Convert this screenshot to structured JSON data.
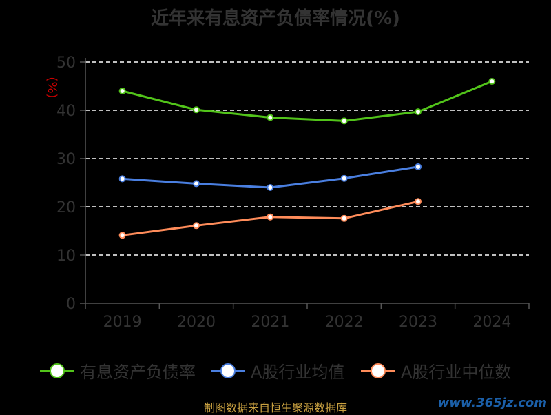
{
  "chart_data": {
    "type": "line",
    "title": "近年来有息资产负债率情况(%)",
    "ylabel": "(%)",
    "xlabel": "",
    "categories": [
      "2019",
      "2020",
      "2021",
      "2022",
      "2023",
      "2024"
    ],
    "ylim": [
      0,
      50
    ],
    "yticks": [
      "0",
      "10",
      "20",
      "30",
      "40",
      "50"
    ],
    "grid": true,
    "legend_position": "bottom",
    "series": [
      {
        "name": "有息资产负债率",
        "color": "#52c41a",
        "values": [
          44.0,
          40.1,
          38.5,
          37.8,
          39.7,
          46.0
        ]
      },
      {
        "name": "A股行业均值",
        "color": "#4a7fe0",
        "values": [
          25.8,
          24.8,
          24.0,
          25.9,
          28.3,
          null
        ]
      },
      {
        "name": "A股行业中位数",
        "color": "#ff8c5a",
        "values": [
          14.1,
          16.1,
          17.9,
          17.6,
          21.1,
          null
        ]
      }
    ]
  },
  "footer": {
    "source": "制图数据来自恒生聚源数据库",
    "watermark": "www.365jz.com"
  }
}
